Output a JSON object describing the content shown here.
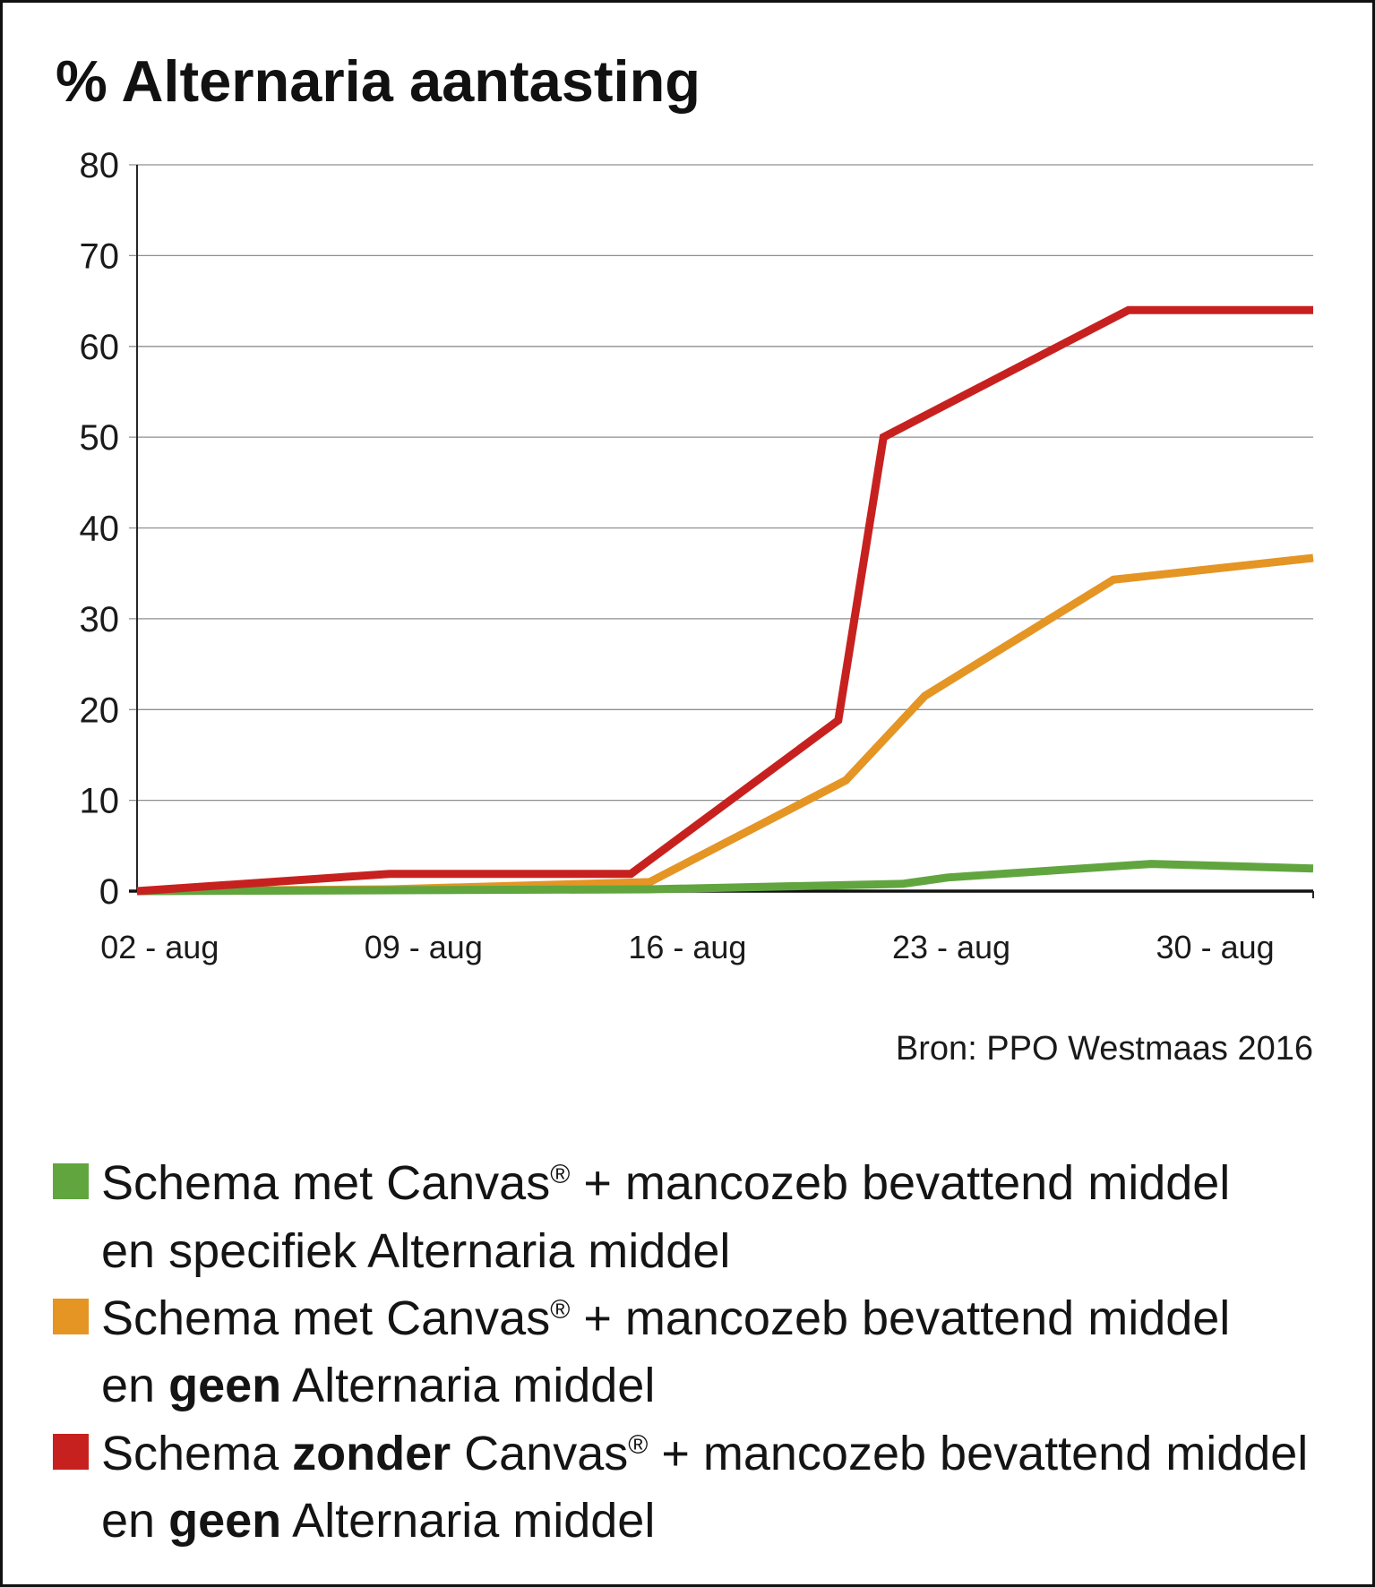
{
  "chart_data": {
    "type": "line",
    "title": "% Alternaria aantasting",
    "xlim": [
      1.4,
      32.6
    ],
    "ylim": [
      0,
      80
    ],
    "yticks": [
      0,
      10,
      20,
      30,
      40,
      50,
      60,
      70,
      80
    ],
    "xticks": [
      {
        "day": 2,
        "label": "02 - aug"
      },
      {
        "day": 9,
        "label": "09 - aug"
      },
      {
        "day": 16,
        "label": "16 - aug"
      },
      {
        "day": 23,
        "label": "23 - aug"
      },
      {
        "day": 30,
        "label": "30 - aug"
      }
    ],
    "grid": true,
    "series": [
      {
        "color": "#61a53f",
        "points": [
          [
            1.4,
            0
          ],
          [
            15.0,
            0.2
          ],
          [
            21.7,
            0.8
          ],
          [
            22.9,
            1.5
          ],
          [
            28.3,
            3.0
          ],
          [
            32.6,
            2.5
          ]
        ],
        "legend": {
          "line1": [
            "Schema met Canvas",
            "®",
            " + mancozeb bevattend middel"
          ],
          "line2": [
            "en specifiek Alternaria middel"
          ]
        }
      },
      {
        "color": "#e49524",
        "points": [
          [
            1.4,
            0
          ],
          [
            8.1,
            0.2
          ],
          [
            15.0,
            1.0
          ],
          [
            20.2,
            12.2
          ],
          [
            22.3,
            21.5
          ],
          [
            27.3,
            34.3
          ],
          [
            32.6,
            36.7
          ]
        ],
        "legend": {
          "line1": [
            "Schema met Canvas",
            "®",
            " + mancozeb bevattend middel"
          ],
          "line2": [
            "en ",
            "geen",
            " Alternaria middel"
          ]
        }
      },
      {
        "color": "#c7211f",
        "points": [
          [
            1.4,
            0
          ],
          [
            8.1,
            1.9
          ],
          [
            14.5,
            1.9
          ],
          [
            20.0,
            18.8
          ],
          [
            21.2,
            50
          ],
          [
            27.7,
            64
          ],
          [
            32.6,
            64
          ]
        ],
        "legend": {
          "line1": [
            "Schema ",
            "zonder",
            " Canvas",
            "®",
            " + mancozeb bevattend middel"
          ],
          "line2": [
            "en ",
            "geen",
            " Alternaria middel"
          ]
        }
      }
    ],
    "source": "Bron: PPO Westmaas 2016"
  }
}
